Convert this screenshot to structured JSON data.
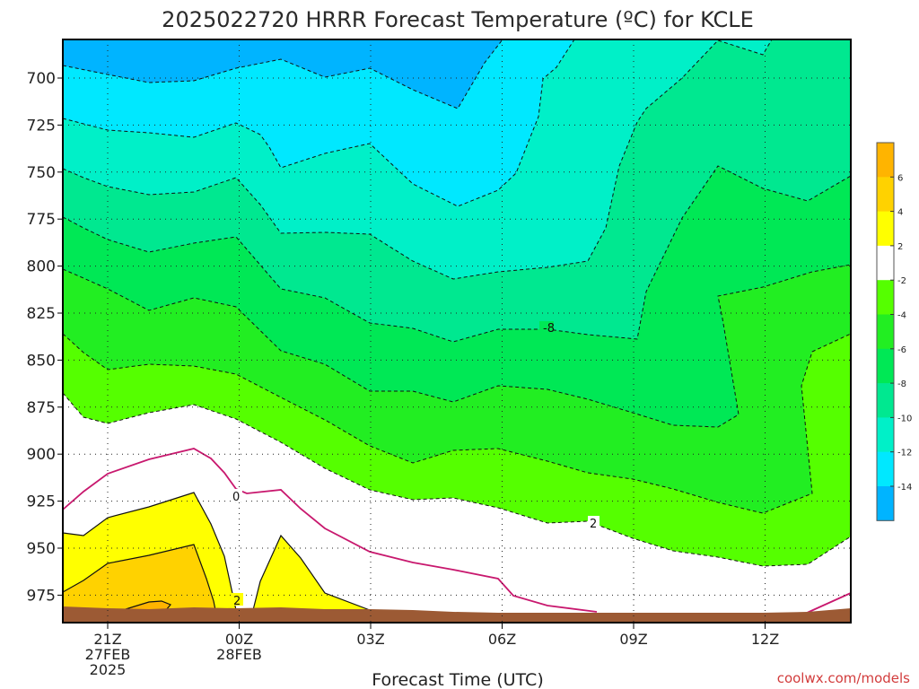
{
  "title": "2025022720 HRRR Forecast Temperature (ºC) for KCLE",
  "xlabel": "Forecast Time (UTC)",
  "credit": "coolwx.com/models",
  "chart_data": {
    "type": "contour",
    "title": "2025022720 HRRR Forecast Temperature (ºC) for KCLE",
    "xlabel": "Forecast Time (UTC)",
    "ylabel": "",
    "x_ticks": [
      {
        "lines": [
          "21Z",
          "27FEB",
          "2025"
        ]
      },
      {
        "lines": [
          "00Z",
          "28FEB"
        ]
      },
      {
        "lines": [
          "03Z"
        ]
      },
      {
        "lines": [
          "06Z"
        ]
      },
      {
        "lines": [
          "09Z"
        ]
      },
      {
        "lines": [
          "12Z"
        ]
      }
    ],
    "y_ticks": [
      "700",
      "725",
      "750",
      "775",
      "800",
      "825",
      "850",
      "875",
      "900",
      "925",
      "950",
      "975"
    ],
    "y_axis": "pressure (hPa), decreasing upward",
    "grid": "dotted",
    "colorbar": {
      "position": "right",
      "ticks": [
        "6",
        "4",
        "2",
        "-2",
        "-4",
        "-6",
        "-8",
        "-10",
        "-12",
        "-14"
      ],
      "bins": [
        {
          "range": "6 to 8",
          "color": "#ffb400"
        },
        {
          "range": "4 to 6",
          "color": "#ffd200"
        },
        {
          "range": "2 to 4",
          "color": "#ffff00"
        },
        {
          "range": "-2 to 2",
          "color": "#ffffff"
        },
        {
          "range": "-4 to -2",
          "color": "#55ff00"
        },
        {
          "range": "-6 to -4",
          "color": "#22ee22"
        },
        {
          "range": "-8 to -6",
          "color": "#00e855"
        },
        {
          "range": "-10 to -8",
          "color": "#00e890"
        },
        {
          "range": "-12 to -10",
          "color": "#00f0c8"
        },
        {
          "range": "-14 to -12",
          "color": "#00e8ff"
        },
        {
          "range": "-16 to -14",
          "color": "#00b4ff"
        }
      ]
    },
    "contour_labels": [
      "-8",
      "0",
      "2",
      "2"
    ],
    "ground_color": "#9c5a34"
  }
}
